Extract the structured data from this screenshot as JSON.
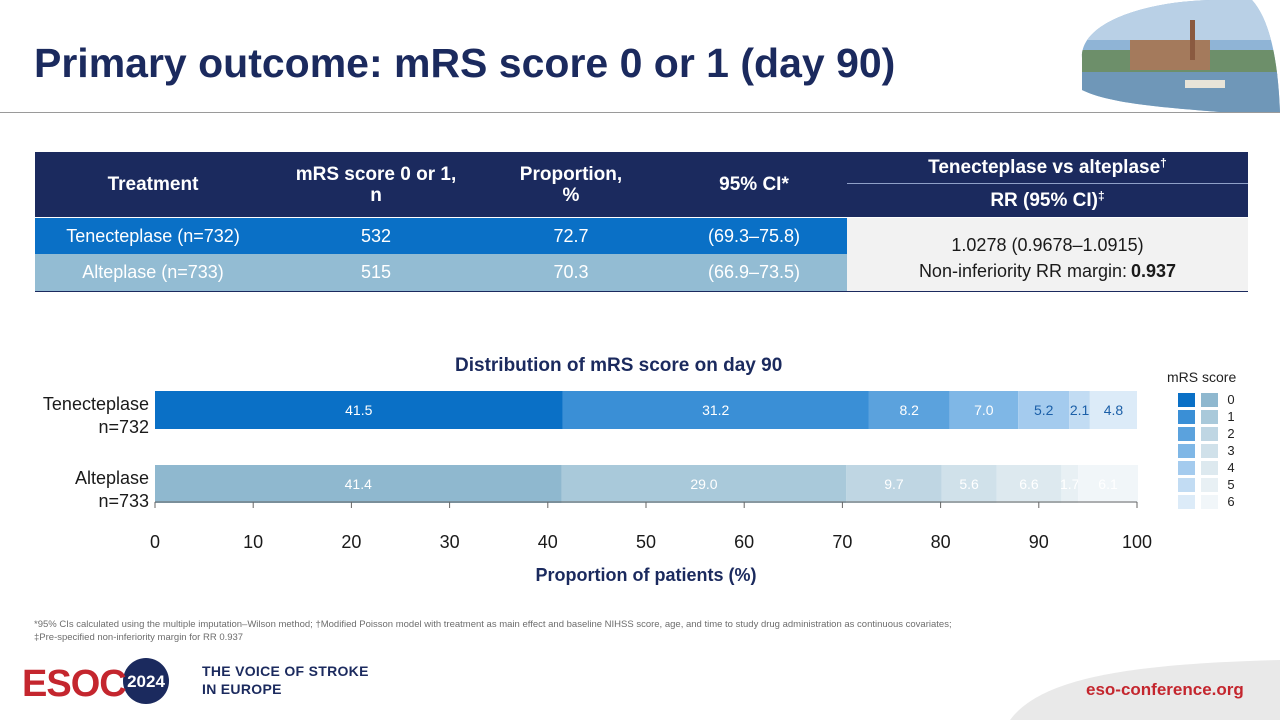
{
  "header": {
    "title": "Primary outcome: mRS score 0 or 1 (day 90)"
  },
  "table": {
    "headers": {
      "treatment": "Treatment",
      "mrs_n_line1": "mRS score 0 or 1,",
      "mrs_n_line2": "n",
      "proportion_line1": "Proportion,",
      "proportion_line2": "%",
      "ci": "95% CI*",
      "comparison": "Tenecteplase vs alteplase",
      "comparison_mark": "†",
      "rr": "RR (95% CI)",
      "rr_mark": "‡"
    },
    "rows": [
      {
        "treatment": "Tenecteplase (n=732)",
        "n": "532",
        "proportion": "72.7",
        "ci": "(69.3–75.8)"
      },
      {
        "treatment": "Alteplase (n=733)",
        "n": "515",
        "proportion": "70.3",
        "ci": "(66.9–73.5)"
      }
    ],
    "rr_value": "1.0278 (0.9678–1.0915)",
    "margin_label": "Non-inferiority RR margin: ",
    "margin_value": "0.937"
  },
  "chart_data": {
    "type": "bar",
    "orientation": "horizontal",
    "stacked": true,
    "title": "Distribution  of mRS score on day 90",
    "xlabel": "Proportion of patients (%)",
    "xlim": [
      0,
      100
    ],
    "xticks": [
      "0",
      "10",
      "20",
      "30",
      "40",
      "50",
      "60",
      "70",
      "80",
      "90",
      "100"
    ],
    "categories": [
      {
        "line1": "Tenecteplase",
        "line2": "n=732"
      },
      {
        "line1": "Alteplase",
        "line2": "n=733"
      }
    ],
    "segment_labels": [
      "0",
      "1",
      "2",
      "3",
      "4",
      "5",
      "6"
    ],
    "values": [
      [
        41.5,
        31.2,
        8.2,
        7.0,
        5.2,
        2.1,
        4.8
      ],
      [
        41.4,
        29.0,
        9.7,
        5.6,
        6.6,
        1.7,
        6.1
      ]
    ],
    "colors": [
      [
        "#0a70c6",
        "#3a8fd6",
        "#5ba2dd",
        "#7fb7e6",
        "#a4cbee",
        "#c2dcf3",
        "#dcebf8"
      ],
      [
        "#8fb8cf",
        "#a9c9da",
        "#bfd6e3",
        "#d0e1ea",
        "#dde9ef",
        "#e8f0f4",
        "#f1f6f9"
      ]
    ],
    "legend": {
      "title": "mRS score",
      "position": "right"
    }
  },
  "footnotes": {
    "line1": "*95% CIs calculated using the multiple imputation–Wilson  method;  †Modified Poisson model  with treatment as main effect and baseline NIHSS  score, age, and time to study drug administration as continuous covariates;",
    "line2": "‡Pre-specified non-inferiority margin for RR 0.937"
  },
  "footer": {
    "logo_text": "ESOC",
    "logo_year": "2024",
    "tagline_line1": "THE VOICE OF STROKE",
    "tagline_line2": "IN EUROPE",
    "url": "eso-conference.org"
  }
}
